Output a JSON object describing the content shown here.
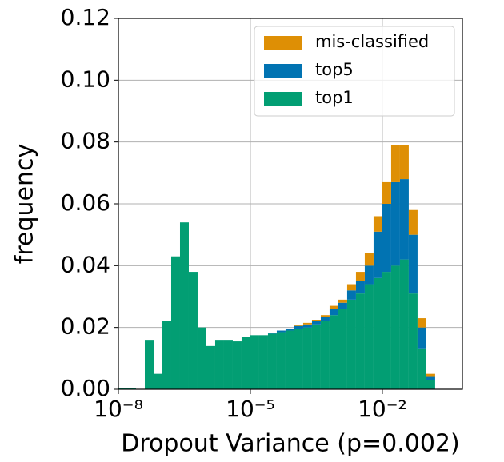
{
  "chart_data": {
    "type": "histogram",
    "xlabel": "Dropout Variance (p=0.002)",
    "ylabel": "frequency",
    "xscale": "log",
    "stacked": true,
    "grid": true,
    "legend_position": "upper right",
    "bins": [
      1e-08,
      1.585e-08,
      2.512e-08,
      3.981e-08,
      6.31e-08,
      1e-07,
      1.585e-07,
      2.512e-07,
      3.981e-07,
      6.31e-07,
      1e-06,
      1.585e-06,
      2.512e-06,
      3.981e-06,
      6.31e-06,
      1e-05,
      1.585e-05,
      2.512e-05,
      3.981e-05,
      6.31e-05,
      0.0001,
      0.0001585,
      0.0002512,
      0.0003981,
      0.000631,
      0.001,
      0.001585,
      0.002512,
      0.003981,
      0.00631,
      0.01,
      0.01585,
      0.02512,
      0.03981,
      0.0631,
      0.1,
      0.1585
    ],
    "series": [
      {
        "name": "mis-classified",
        "color": "#de8f05",
        "values": [
          0,
          0,
          0,
          0,
          0,
          0,
          0,
          0,
          0,
          0,
          0,
          0,
          0,
          0,
          0,
          0,
          0,
          0,
          0,
          0,
          0.0003,
          0.0005,
          0.0005,
          0.0005,
          0.001,
          0.001,
          0.002,
          0.003,
          0.004,
          0.005,
          0.007,
          0.012,
          0.011,
          0.008,
          0.003,
          0.001
        ]
      },
      {
        "name": "top5",
        "color": "#0173b2",
        "values": [
          0,
          0,
          0,
          0,
          0,
          0,
          0,
          0,
          0,
          0,
          0,
          0,
          0,
          0,
          0,
          0,
          0,
          0.0003,
          0.0005,
          0.0005,
          0.001,
          0.001,
          0.001,
          0.0015,
          0.002,
          0.002,
          0.003,
          0.004,
          0.006,
          0.015,
          0.022,
          0.027,
          0.026,
          0.019,
          0.007,
          0.001
        ]
      },
      {
        "name": "top1",
        "color": "#029e73",
        "values": [
          0.0005,
          0.0005,
          0,
          0.016,
          0.005,
          0.022,
          0.043,
          0.054,
          0.038,
          0.02,
          0.014,
          0.016,
          0.016,
          0.0155,
          0.017,
          0.0175,
          0.0175,
          0.018,
          0.0185,
          0.019,
          0.0195,
          0.02,
          0.021,
          0.022,
          0.024,
          0.026,
          0.029,
          0.031,
          0.034,
          0.036,
          0.038,
          0.04,
          0.042,
          0.031,
          0.013,
          0.003
        ]
      }
    ],
    "xlim": [
      1e-08,
      0.66
    ],
    "ylim": [
      0,
      0.12
    ],
    "xticks": [
      {
        "value": 1e-08,
        "label": "10⁻⁸"
      },
      {
        "value": 1e-05,
        "label": "10⁻⁵"
      },
      {
        "value": 0.01,
        "label": "10⁻²"
      }
    ],
    "yticks": [
      {
        "value": 0,
        "label": "0.00"
      },
      {
        "value": 0.02,
        "label": "0.02"
      },
      {
        "value": 0.04,
        "label": "0.04"
      },
      {
        "value": 0.06,
        "label": "0.06"
      },
      {
        "value": 0.08,
        "label": "0.08"
      },
      {
        "value": 0.1,
        "label": "0.10"
      },
      {
        "value": 0.12,
        "label": "0.12"
      }
    ]
  }
}
